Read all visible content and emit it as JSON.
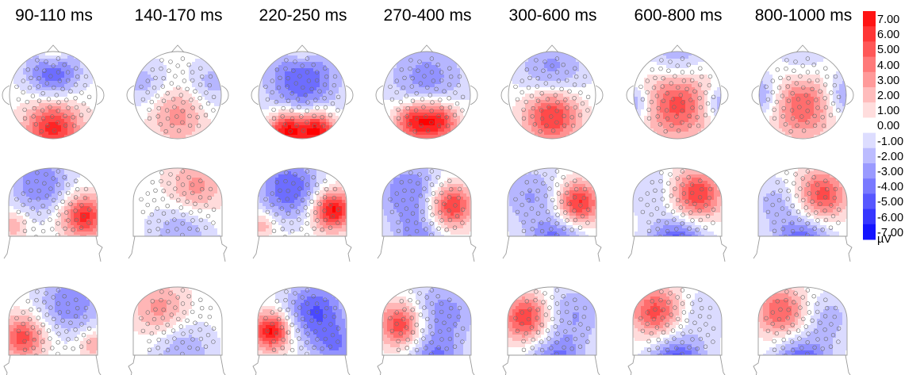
{
  "time_windows": [
    "90-110 ms",
    "140-170 ms",
    "220-250 ms",
    "270-400 ms",
    "300-600 ms",
    "600-800 ms",
    "800-1000 ms"
  ],
  "views": [
    "top",
    "right",
    "left"
  ],
  "colorbar": {
    "ticks": [
      "7.00",
      "6.00",
      "5.00",
      "4.00",
      "3.00",
      "2.00",
      "1.00",
      "0.00",
      "-1.00",
      "-2.00",
      "-3.00",
      "-4.00",
      "-5.00",
      "-6.00",
      "-7.00"
    ],
    "unit": "µV",
    "range": [
      -7,
      7
    ],
    "max_color": "#ff0000",
    "min_color": "#0000ff",
    "zero_color": "#ffffff"
  },
  "maps": [
    {
      "window": "90-110 ms",
      "view": "top",
      "blobs": [
        {
          "u": 0.0,
          "v": -0.55,
          "amp": -4.5,
          "s": 0.45
        },
        {
          "u": 0.0,
          "v": 0.75,
          "amp": 6.0,
          "s": 0.45
        },
        {
          "u": 0.0,
          "v": -1.0,
          "amp": 3.0,
          "s": 0.25
        }
      ]
    },
    {
      "window": "140-170 ms",
      "view": "top",
      "blobs": [
        {
          "u": 0.0,
          "v": 0.45,
          "amp": 3.0,
          "s": 0.45
        },
        {
          "u": -0.75,
          "v": -0.25,
          "amp": -2.0,
          "s": 0.4
        },
        {
          "u": 0.75,
          "v": -0.25,
          "amp": -2.0,
          "s": 0.4
        }
      ]
    },
    {
      "window": "220-250 ms",
      "view": "top",
      "blobs": [
        {
          "u": -0.35,
          "v": 0.8,
          "amp": 7.0,
          "s": 0.3
        },
        {
          "u": 0.35,
          "v": 0.8,
          "amp": 7.0,
          "s": 0.3
        },
        {
          "u": 0.0,
          "v": -0.35,
          "amp": -4.5,
          "s": 0.6
        },
        {
          "u": 0.0,
          "v": -1.0,
          "amp": 2.0,
          "s": 0.25
        }
      ]
    },
    {
      "window": "270-400 ms",
      "view": "top",
      "blobs": [
        {
          "u": -0.3,
          "v": 0.6,
          "amp": 6.0,
          "s": 0.32
        },
        {
          "u": 0.3,
          "v": 0.6,
          "amp": 6.0,
          "s": 0.32
        },
        {
          "u": 0.0,
          "v": -0.35,
          "amp": -3.0,
          "s": 0.65
        }
      ]
    },
    {
      "window": "300-600 ms",
      "view": "top",
      "blobs": [
        {
          "u": 0.0,
          "v": 0.45,
          "amp": 6.0,
          "s": 0.45
        },
        {
          "u": 0.0,
          "v": -0.55,
          "amp": -3.0,
          "s": 0.55
        }
      ]
    },
    {
      "window": "600-800 ms",
      "view": "top",
      "blobs": [
        {
          "u": 0.0,
          "v": 0.2,
          "amp": 5.0,
          "s": 0.55
        },
        {
          "u": 0.0,
          "v": -0.9,
          "amp": -2.5,
          "s": 0.45
        },
        {
          "u": -1.0,
          "v": 0.2,
          "amp": -3.0,
          "s": 0.3
        },
        {
          "u": 1.0,
          "v": 0.2,
          "amp": -3.0,
          "s": 0.3
        }
      ]
    },
    {
      "window": "800-1000 ms",
      "view": "top",
      "blobs": [
        {
          "u": 0.0,
          "v": 0.25,
          "amp": 4.5,
          "s": 0.5
        },
        {
          "u": -1.0,
          "v": 0.0,
          "amp": -3.0,
          "s": 0.35
        },
        {
          "u": 1.0,
          "v": 0.0,
          "amp": -3.0,
          "s": 0.35
        },
        {
          "u": 0.0,
          "v": -0.9,
          "amp": -1.5,
          "s": 0.4
        }
      ]
    },
    {
      "window": "90-110 ms",
      "view": "right",
      "blobs": [
        {
          "u": 0.7,
          "v": 0.2,
          "amp": 6.0,
          "s": 0.35
        },
        {
          "u": -0.3,
          "v": -0.55,
          "amp": -3.5,
          "s": 0.5
        },
        {
          "u": -0.9,
          "v": 0.4,
          "amp": 2.5,
          "s": 0.22
        }
      ]
    },
    {
      "window": "140-170 ms",
      "view": "right",
      "blobs": [
        {
          "u": 0.4,
          "v": -0.45,
          "amp": 3.0,
          "s": 0.45
        },
        {
          "u": 0.1,
          "v": 0.55,
          "amp": -2.5,
          "s": 0.5
        }
      ]
    },
    {
      "window": "220-250 ms",
      "view": "right",
      "blobs": [
        {
          "u": 0.7,
          "v": 0.05,
          "amp": 7.0,
          "s": 0.32
        },
        {
          "u": -0.3,
          "v": -0.45,
          "amp": -4.5,
          "s": 0.5
        },
        {
          "u": -0.9,
          "v": 0.4,
          "amp": 2.5,
          "s": 0.2
        }
      ]
    },
    {
      "window": "270-400 ms",
      "view": "right",
      "blobs": [
        {
          "u": 0.55,
          "v": -0.05,
          "amp": 6.0,
          "s": 0.35
        },
        {
          "u": -0.4,
          "v": -0.35,
          "amp": -3.5,
          "s": 0.55
        },
        {
          "u": -0.2,
          "v": 0.8,
          "amp": -3.0,
          "s": 0.4
        }
      ]
    },
    {
      "window": "300-600 ms",
      "view": "right",
      "blobs": [
        {
          "u": 0.6,
          "v": -0.1,
          "amp": 6.0,
          "s": 0.35
        },
        {
          "u": 0.1,
          "v": 0.8,
          "amp": -4.0,
          "s": 0.45
        },
        {
          "u": -0.5,
          "v": -0.3,
          "amp": -2.5,
          "s": 0.5
        }
      ]
    },
    {
      "window": "600-800 ms",
      "view": "right",
      "blobs": [
        {
          "u": 0.45,
          "v": -0.3,
          "amp": 5.5,
          "s": 0.4
        },
        {
          "u": 0.0,
          "v": 0.9,
          "amp": -5.5,
          "s": 0.45
        },
        {
          "u": -0.6,
          "v": -0.4,
          "amp": -1.5,
          "s": 0.4
        }
      ]
    },
    {
      "window": "800-1000 ms",
      "view": "right",
      "blobs": [
        {
          "u": 0.45,
          "v": -0.3,
          "amp": 5.0,
          "s": 0.4
        },
        {
          "u": 0.0,
          "v": 0.9,
          "amp": -5.0,
          "s": 0.45
        },
        {
          "u": -0.6,
          "v": -0.1,
          "amp": -2.0,
          "s": 0.4
        }
      ]
    },
    {
      "window": "90-110 ms",
      "view": "left",
      "blobs": [
        {
          "u": -0.7,
          "v": 0.25,
          "amp": 5.0,
          "s": 0.35
        },
        {
          "u": 0.4,
          "v": -0.55,
          "amp": -3.5,
          "s": 0.5
        },
        {
          "u": 0.9,
          "v": 0.4,
          "amp": 2.5,
          "s": 0.22
        }
      ]
    },
    {
      "window": "140-170 ms",
      "view": "left",
      "blobs": [
        {
          "u": -0.4,
          "v": -0.4,
          "amp": 3.0,
          "s": 0.45
        },
        {
          "u": 0.1,
          "v": 0.55,
          "amp": -2.5,
          "s": 0.5
        }
      ]
    },
    {
      "window": "220-250 ms",
      "view": "left",
      "blobs": [
        {
          "u": -0.7,
          "v": 0.1,
          "amp": 7.0,
          "s": 0.3
        },
        {
          "u": 0.3,
          "v": -0.35,
          "amp": -4.5,
          "s": 0.5
        },
        {
          "u": 0.8,
          "v": 0.5,
          "amp": -3.0,
          "s": 0.4
        }
      ]
    },
    {
      "window": "270-400 ms",
      "view": "left",
      "blobs": [
        {
          "u": -0.6,
          "v": -0.05,
          "amp": 5.5,
          "s": 0.35
        },
        {
          "u": 0.4,
          "v": -0.3,
          "amp": -3.0,
          "s": 0.55
        },
        {
          "u": 0.2,
          "v": 0.8,
          "amp": -3.5,
          "s": 0.4
        }
      ]
    },
    {
      "window": "300-600 ms",
      "view": "left",
      "blobs": [
        {
          "u": -0.6,
          "v": -0.2,
          "amp": 5.5,
          "s": 0.38
        },
        {
          "u": 0.1,
          "v": 0.85,
          "amp": -4.0,
          "s": 0.45
        },
        {
          "u": 0.5,
          "v": -0.3,
          "amp": -2.5,
          "s": 0.5
        }
      ]
    },
    {
      "window": "600-800 ms",
      "view": "left",
      "blobs": [
        {
          "u": -0.5,
          "v": -0.35,
          "amp": 5.0,
          "s": 0.4
        },
        {
          "u": 0.0,
          "v": 0.9,
          "amp": -5.5,
          "s": 0.45
        },
        {
          "u": 0.6,
          "v": -0.3,
          "amp": -1.5,
          "s": 0.4
        }
      ]
    },
    {
      "window": "800-1000 ms",
      "view": "left",
      "blobs": [
        {
          "u": -0.5,
          "v": -0.35,
          "amp": 4.5,
          "s": 0.4
        },
        {
          "u": 0.0,
          "v": 0.9,
          "amp": -5.0,
          "s": 0.45
        },
        {
          "u": 0.6,
          "v": -0.2,
          "amp": -2.0,
          "s": 0.4
        }
      ]
    }
  ]
}
